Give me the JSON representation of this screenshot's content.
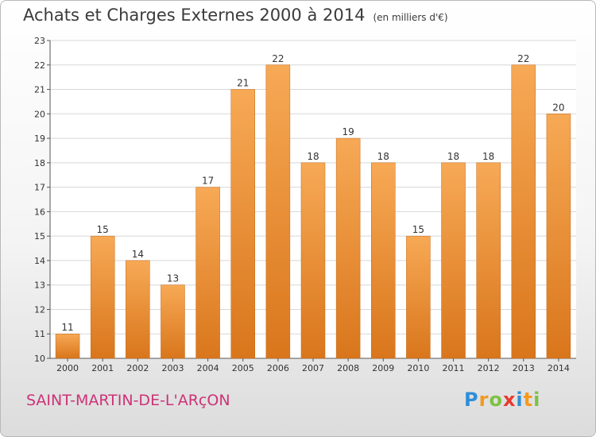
{
  "title": "Achats et Charges Externes 2000 à 2014",
  "subtitle": "(en milliers d'€)",
  "commune": "SAINT-MARTIN-DE-L'ARçON",
  "brand": {
    "letters": [
      "P",
      "r",
      "o",
      "x",
      "i",
      "t",
      "i"
    ],
    "colors": [
      "#2e8fd8",
      "#f39a1e",
      "#7cc242",
      "#e63b2e",
      "#2e8fd8",
      "#f39a1e",
      "#7cc242"
    ]
  },
  "colors": {
    "bar_top": "#f7a955",
    "bar_bottom": "#d9761c",
    "bar_edge": "#c26a1a",
    "grid": "#d7d7d7",
    "plot_bg": "#ffffff"
  },
  "chart_data": {
    "type": "bar",
    "title": "Achats et Charges Externes 2000 à 2014",
    "subtitle": "(en milliers d'€)",
    "xlabel": "",
    "ylabel": "",
    "categories": [
      "2000",
      "2001",
      "2002",
      "2003",
      "2004",
      "2005",
      "2006",
      "2007",
      "2008",
      "2009",
      "2010",
      "2011",
      "2012",
      "2013",
      "2014"
    ],
    "values": [
      11,
      15,
      14,
      13,
      17,
      21,
      22,
      18,
      19,
      18,
      15,
      18,
      18,
      22,
      20
    ],
    "ylim": [
      10,
      23
    ],
    "yticks": [
      10,
      11,
      12,
      13,
      14,
      15,
      16,
      17,
      18,
      19,
      20,
      21,
      22,
      23
    ],
    "grid": true
  }
}
